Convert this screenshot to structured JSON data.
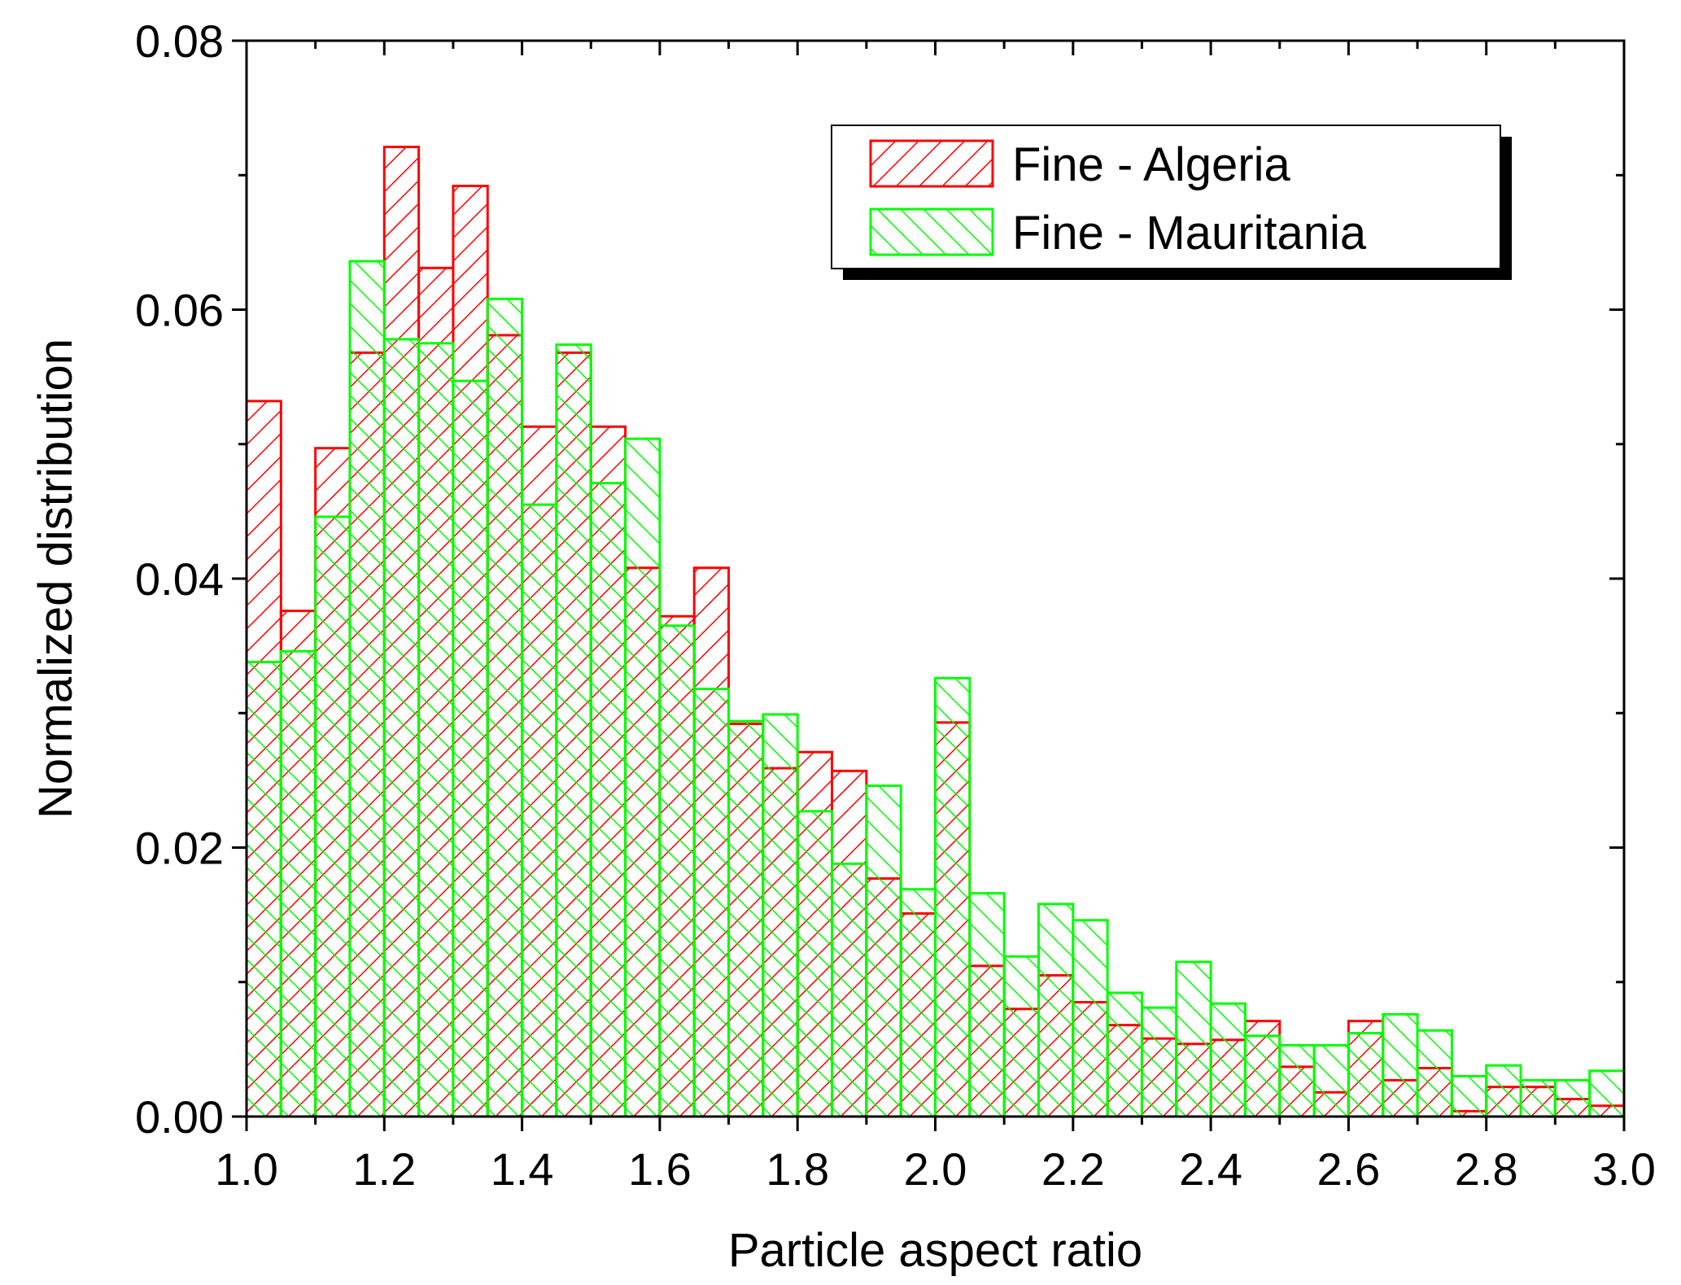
{
  "chart_data": {
    "type": "bar",
    "xlabel": "Particle aspect ratio",
    "ylabel": "Normalized distribution",
    "xlim": [
      1.0,
      3.0
    ],
    "ylim": [
      0.0,
      0.08
    ],
    "x_ticks": [
      "1.0",
      "1.2",
      "1.4",
      "1.6",
      "1.8",
      "2.0",
      "2.2",
      "2.4",
      "2.6",
      "2.8",
      "3.0"
    ],
    "y_ticks": [
      "0.00",
      "0.02",
      "0.04",
      "0.06",
      "0.08"
    ],
    "grid": false,
    "legend_position": "top-right",
    "bin_edges": [
      1.0,
      1.05,
      1.1,
      1.15,
      1.2,
      1.25,
      1.3,
      1.35,
      1.4,
      1.45,
      1.5,
      1.55,
      1.6,
      1.65,
      1.7,
      1.75,
      1.8,
      1.85,
      1.9,
      1.95,
      2.0,
      2.05,
      2.1,
      2.15,
      2.2,
      2.25,
      2.3,
      2.35,
      2.4,
      2.45,
      2.5,
      2.55,
      2.6,
      2.65,
      2.7,
      2.75,
      2.8,
      2.85,
      2.9,
      2.95,
      3.0
    ],
    "series": [
      {
        "name": "Fine - Algeria",
        "color": "#ff0000",
        "hatch": "forward-diagonal",
        "values": [
          0.0532,
          0.0376,
          0.0497,
          0.0568,
          0.0721,
          0.0631,
          0.0692,
          0.0581,
          0.0513,
          0.0568,
          0.0513,
          0.0408,
          0.0372,
          0.0408,
          0.0292,
          0.0259,
          0.0271,
          0.0257,
          0.0177,
          0.0151,
          0.0293,
          0.0112,
          0.008,
          0.0105,
          0.0085,
          0.0068,
          0.0058,
          0.0054,
          0.0057,
          0.0071,
          0.0037,
          0.0018,
          0.0071,
          0.0027,
          0.0036,
          0.0004,
          0.0022,
          0.0022,
          0.0013,
          0.0008
        ]
      },
      {
        "name": "Fine - Mauritania",
        "color": "#00ff00",
        "hatch": "backward-diagonal",
        "values": [
          0.0338,
          0.0346,
          0.0446,
          0.0636,
          0.0578,
          0.0575,
          0.0547,
          0.0608,
          0.0455,
          0.0574,
          0.0471,
          0.0504,
          0.0365,
          0.0318,
          0.0294,
          0.0299,
          0.0227,
          0.0188,
          0.0246,
          0.0169,
          0.0326,
          0.0166,
          0.0119,
          0.0158,
          0.0146,
          0.0092,
          0.0081,
          0.0115,
          0.0084,
          0.006,
          0.0053,
          0.0053,
          0.0062,
          0.0076,
          0.0064,
          0.003,
          0.0038,
          0.0027,
          0.0027,
          0.0034
        ]
      }
    ]
  }
}
